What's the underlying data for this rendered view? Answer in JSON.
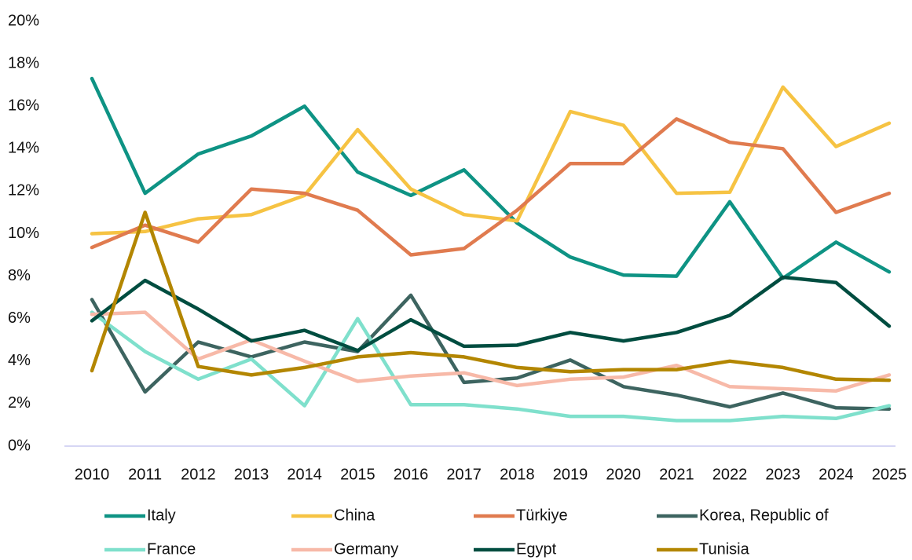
{
  "chart_data": {
    "type": "line",
    "categories": [
      "2010",
      "2011",
      "2012",
      "2013",
      "2014",
      "2015",
      "2016",
      "2017",
      "2018",
      "2019",
      "2020",
      "2021",
      "2022",
      "2023",
      "2024",
      "2025"
    ],
    "ylim": [
      0,
      20
    ],
    "yticks": [
      {
        "value": 0,
        "label": "0%"
      },
      {
        "value": 2,
        "label": "2%"
      },
      {
        "value": 4,
        "label": "4%"
      },
      {
        "value": 6,
        "label": "6%"
      },
      {
        "value": 8,
        "label": "8%"
      },
      {
        "value": 10,
        "label": "10%"
      },
      {
        "value": 12,
        "label": "12%"
      },
      {
        "value": 14,
        "label": "14%"
      },
      {
        "value": 16,
        "label": "16%"
      },
      {
        "value": 18,
        "label": "18%"
      },
      {
        "value": 20,
        "label": "20%"
      }
    ],
    "grid": false,
    "legend": "bottom",
    "series": [
      {
        "name": "Italy",
        "color": "#0e9384",
        "values": [
          17.3,
          11.9,
          13.75,
          14.6,
          16.0,
          12.9,
          11.8,
          13.0,
          10.5,
          8.9,
          8.05,
          8.0,
          11.5,
          7.9,
          9.6,
          8.2
        ]
      },
      {
        "name": "China",
        "color": "#f6c343",
        "values": [
          10.0,
          10.1,
          10.7,
          10.9,
          11.8,
          14.9,
          12.1,
          10.9,
          10.6,
          15.75,
          15.1,
          11.9,
          11.95,
          16.9,
          14.1,
          15.2
        ]
      },
      {
        "name": "Türkiye",
        "color": "#e07b4f",
        "values": [
          9.35,
          10.4,
          9.6,
          12.1,
          11.9,
          11.1,
          9.0,
          9.3,
          11.1,
          13.3,
          13.3,
          15.4,
          14.3,
          14.0,
          11.0,
          11.9
        ]
      },
      {
        "name": "Korea, Republic of",
        "color": "#3d6460",
        "values": [
          6.9,
          2.55,
          4.9,
          4.2,
          4.9,
          4.45,
          7.1,
          3.0,
          3.2,
          4.05,
          2.8,
          2.4,
          1.85,
          2.5,
          1.8,
          1.75
        ]
      },
      {
        "name": "France",
        "color": "#7fe0cc",
        "values": [
          6.3,
          4.45,
          3.15,
          4.1,
          1.9,
          6.0,
          1.95,
          1.95,
          1.75,
          1.4,
          1.4,
          1.2,
          1.2,
          1.4,
          1.3,
          1.9
        ]
      },
      {
        "name": "Germany",
        "color": "#f7b9a8",
        "values": [
          6.2,
          6.3,
          4.1,
          5.0,
          4.0,
          3.05,
          3.3,
          3.45,
          2.85,
          3.15,
          3.25,
          3.8,
          2.8,
          2.7,
          2.6,
          3.35
        ]
      },
      {
        "name": "Egypt",
        "color": "#004d40",
        "values": [
          5.9,
          7.8,
          6.45,
          4.95,
          5.45,
          4.5,
          5.95,
          4.7,
          4.75,
          5.35,
          4.95,
          5.35,
          6.15,
          7.95,
          7.7,
          5.65
        ]
      },
      {
        "name": "Tunisia",
        "color": "#b38600",
        "values": [
          3.55,
          11.0,
          3.75,
          3.35,
          3.7,
          4.2,
          4.4,
          4.2,
          3.7,
          3.5,
          3.6,
          3.6,
          4.0,
          3.7,
          3.15,
          3.1
        ]
      }
    ]
  }
}
